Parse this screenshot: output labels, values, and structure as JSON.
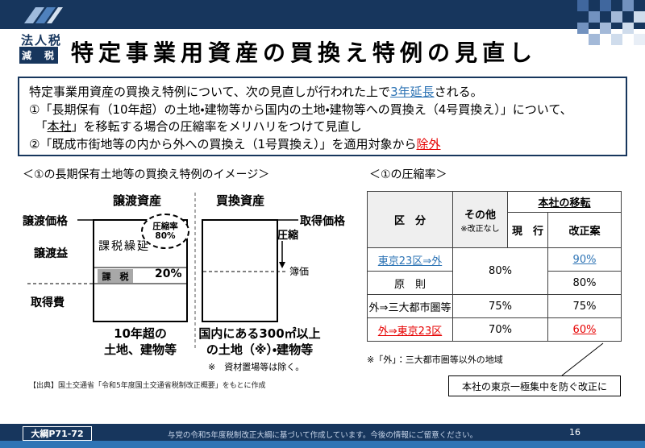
{
  "colors": {
    "navy": "#17365d",
    "accent_blue": "#2e74b5",
    "red": "#e60000",
    "table_header_gray": "#efefef",
    "footer_strip_blue": "#2e74b5"
  },
  "header": {
    "category": "法人税",
    "badge": "減　税",
    "title": "特定事業用資産の買換え特例の見直し"
  },
  "summary": {
    "l1a": "特定事業用資産の買換え特例について、次の見直しが行われた上で",
    "l1b": "3年延長",
    "l1c": "される。",
    "l2": "①「長期保有（10年超）の土地・建物等から国内の土地・建物等への買換え（4号買換え）」について、",
    "l3a": "　「",
    "l3b": "本社",
    "l3c": "」を移転する場合の圧縮率をメリハリをつけて見直し",
    "l4a": "②「既成市街地等の内から外への買換え（1号買換え）」を適用対象から",
    "l4b": "除外"
  },
  "diagram": {
    "title": "＜①の長期保有土地等の買換え特例のイメージ＞",
    "left_asset": "譲渡資産",
    "right_asset": "買換資産",
    "transfer_price": "譲渡価格",
    "acquisition_price": "取得価格",
    "transfer_gain": "譲渡益",
    "acquisition_cost": "取得費",
    "tax_deferral": "課税繰延",
    "compression_rate_line1": "圧縮率",
    "compression_rate_line2": "80%",
    "taxed_label": "課　税",
    "taxed_pct": "20%",
    "compression": "圧縮",
    "book_value": "簿価",
    "left_caption1": "10年超の",
    "left_caption2": "土地、建物等",
    "right_caption1": "国内にある300㎡以上",
    "right_caption2": "の土地（※）・建物等",
    "caption_note": "※　資材置場等は除く。",
    "source": "【出典】国土交通省「令和5年度国土交通省税制改正概要」をもとに作成"
  },
  "table": {
    "title": "＜①の圧縮率＞",
    "header": {
      "col1": "区　分",
      "col2_line1": "その他",
      "col2_line2": "※改正なし",
      "col34": "本社の移転",
      "col3": "現　行",
      "col4": "改正案"
    },
    "rows": [
      {
        "label": "東京23区⇒外",
        "other_current": "80%",
        "revised": "90%"
      },
      {
        "label": "原　則",
        "revised": "80%"
      },
      {
        "label": "外⇒三大都市圏等",
        "other_current": "75%",
        "revised": "75%"
      },
      {
        "label": "外⇒東京23区",
        "other_current": "70%",
        "revised": "60%"
      }
    ],
    "note": "※「外」：三大都市圏等以外の地域",
    "callout": "本社の東京一極集中を防ぐ改正に"
  },
  "footer": {
    "ref": "大綱P71-72",
    "notice": "与党の令和5年度税制改正大綱に基づいて作成しています。今後の情報にご留意ください。",
    "page": "16"
  },
  "decor": {
    "checker": [
      "#40679e",
      "",
      "#40679e",
      "",
      "#7292bf",
      "",
      "",
      "#7292bf",
      "",
      "#a3b9d8",
      "",
      "#cfdcec",
      "#7292bf",
      "",
      "#a3b9d8",
      "",
      "#cfdcec",
      "",
      "",
      "#a3b9d8",
      "",
      "#cfdcec",
      "",
      "#e8eef6"
    ]
  }
}
